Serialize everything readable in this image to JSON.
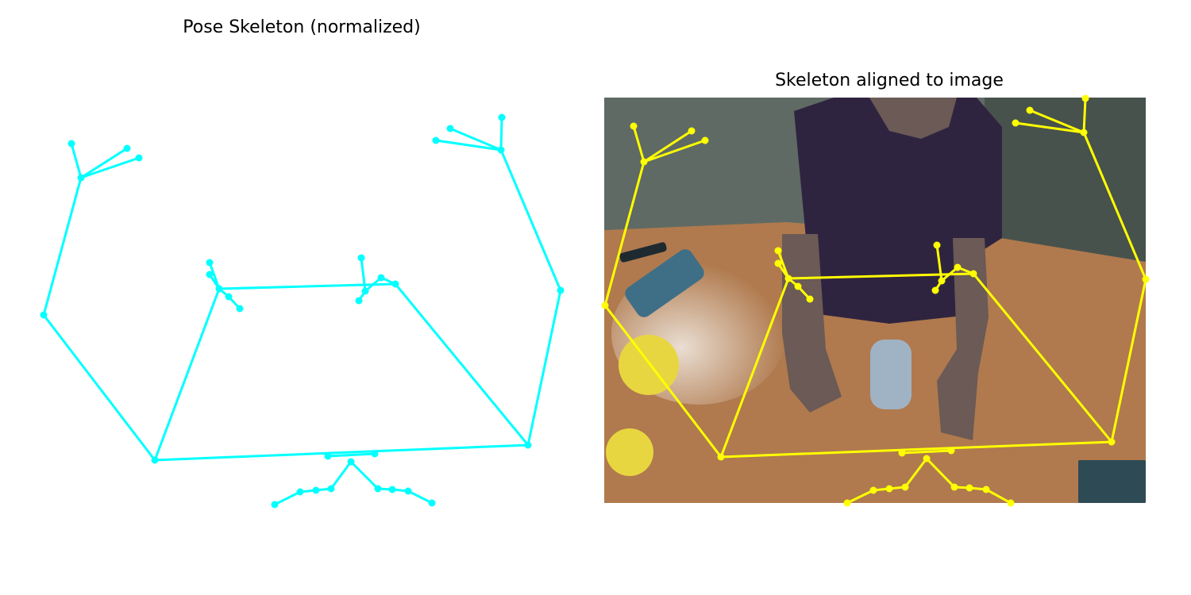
{
  "figure": {
    "left_title": "Pose Skeleton (normalized)",
    "right_title": "Skeleton aligned to image",
    "left_color": "#00ffff",
    "right_color": "#ffff00"
  },
  "photo": {
    "colors": {
      "wall": "#5f6a64",
      "wall_dark": "#47524d",
      "table": "#b07a4e",
      "table_light": "#c99a72",
      "shirt": "#2f2440",
      "skin": "#6b5a55",
      "cup": "#9fb3c4",
      "fruit": "#e8d640",
      "case": "#3f6f86",
      "book": "#2e4a55"
    }
  }
}
